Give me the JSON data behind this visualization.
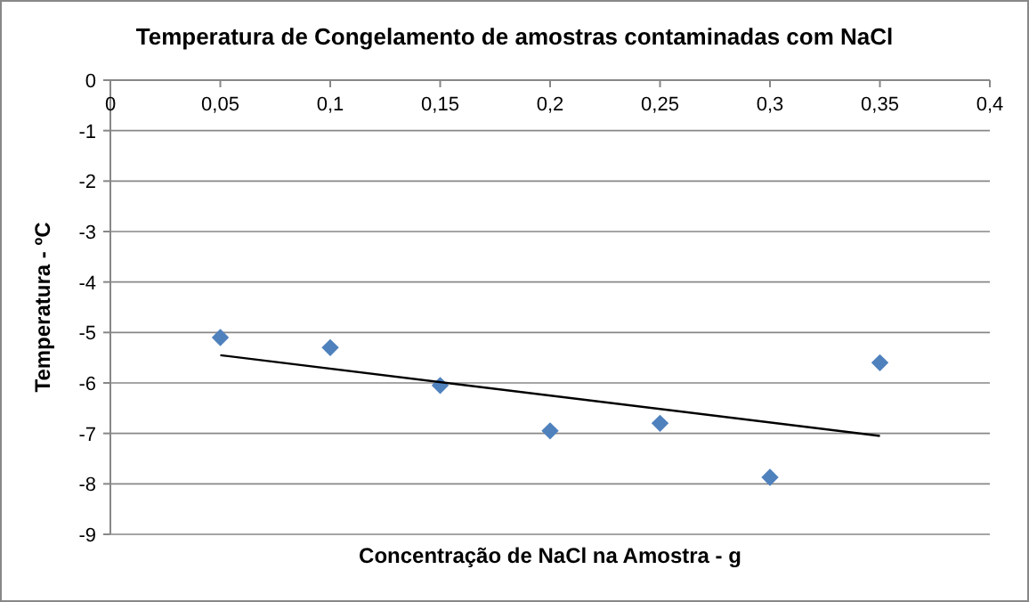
{
  "chart_data": {
    "type": "scatter",
    "title": "Temperatura de Congelamento de amostras contaminadas com NaCl",
    "xlabel": "Concentração  de NaCl na Amostra - g",
    "ylabel": "Temperatura - ºC",
    "x": [
      0.05,
      0.1,
      0.15,
      0.2,
      0.25,
      0.3,
      0.35
    ],
    "series": [
      {
        "color": "#4f81bd",
        "marker": "diamond",
        "values": [
          -5.1,
          -5.3,
          -6.05,
          -6.95,
          -6.8,
          -7.87,
          -5.6
        ]
      },
      {
        "type": "line",
        "color": "#000000",
        "x": [
          0.05,
          0.35
        ],
        "values": [
          -5.45,
          -7.05
        ]
      }
    ],
    "xlim": [
      0,
      0.4
    ],
    "xticks": [
      0,
      {
        "value": 0.05,
        "label": "0,05"
      },
      {
        "value": 0.1,
        "label": "0,1"
      },
      {
        "value": 0.15,
        "label": "0,15"
      },
      {
        "value": 0.2,
        "label": "0,2"
      },
      {
        "value": 0.25,
        "label": "0,25"
      },
      {
        "value": 0.3,
        "label": "0,3"
      },
      {
        "value": 0.35,
        "label": "0,35"
      },
      {
        "value": 0.4,
        "label": "0,4"
      }
    ],
    "ylim": [
      -9,
      0
    ],
    "yticks": [
      0,
      -1,
      -2,
      -3,
      -4,
      -5,
      -6,
      -7,
      -8,
      -9
    ],
    "grid": "y"
  }
}
